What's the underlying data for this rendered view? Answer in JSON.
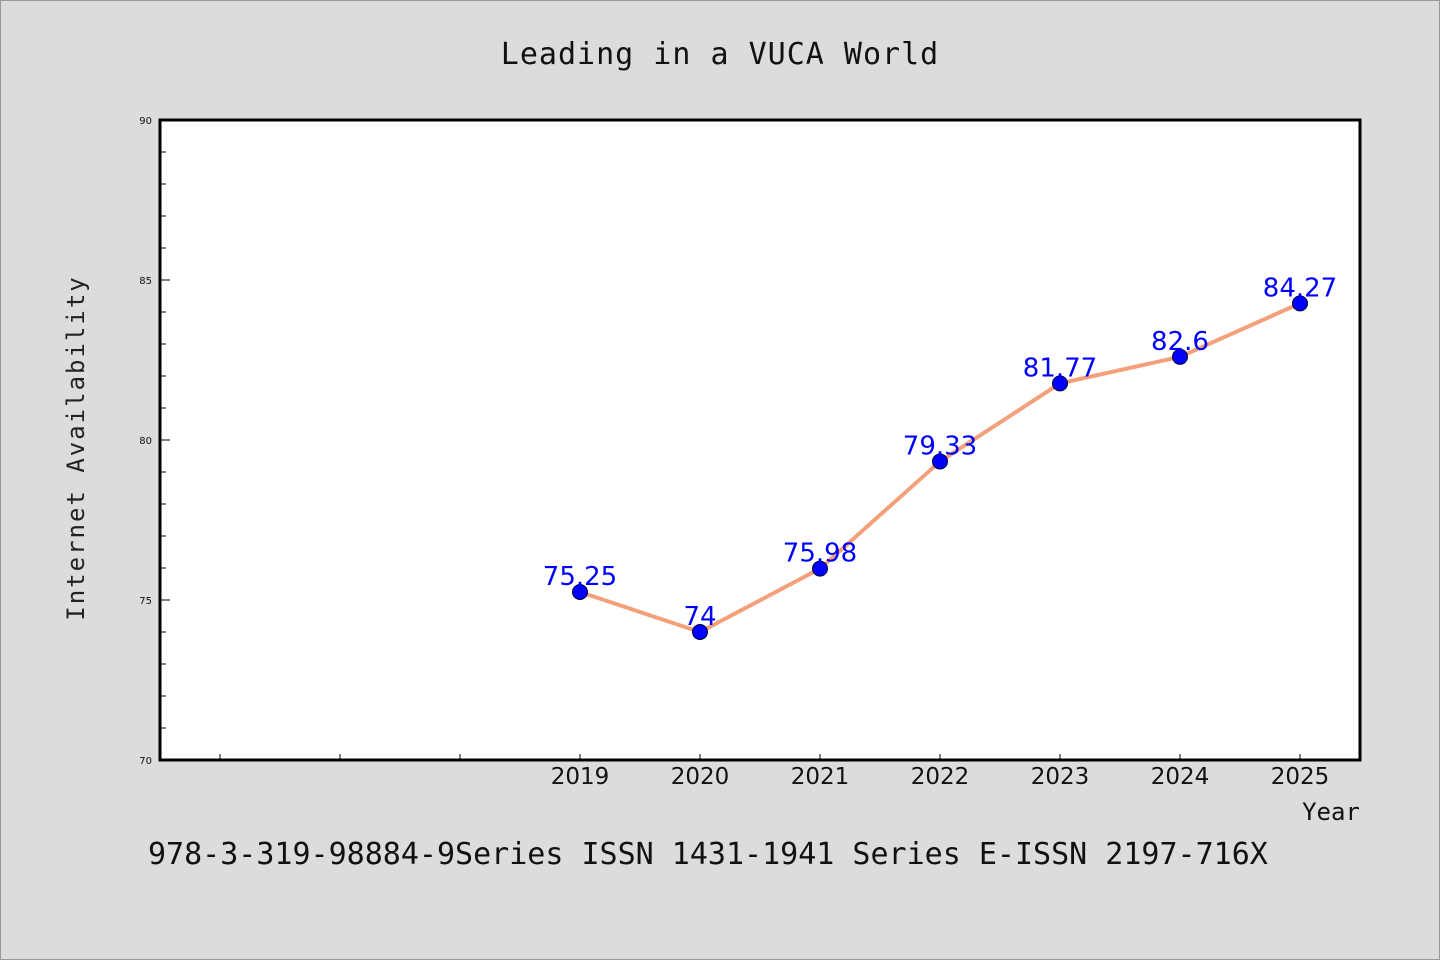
{
  "chart_data": {
    "type": "line",
    "title": "Leading in a VUCA World",
    "xlabel": "Year",
    "ylabel": "Internet Availability",
    "categories": [
      "2019",
      "2020",
      "2021",
      "2022",
      "2023",
      "2024",
      "2025"
    ],
    "series": [
      {
        "values": [
          75.25,
          74,
          75.98,
          79.33,
          81.77,
          82.6,
          84.27
        ]
      }
    ],
    "data_labels": [
      "75.25",
      "74",
      "75.98",
      "79.33",
      "81.77",
      "82.6",
      "84.27"
    ],
    "ylim": [
      70,
      90
    ],
    "yticks": [
      70,
      75,
      80,
      85,
      90
    ],
    "grid": false,
    "colors": {
      "line": "#f4a07a",
      "marker": "#0000ff",
      "label": "#0000ff",
      "background": "#dcdcdc",
      "plot_background": "#ffffff"
    }
  },
  "footer": "978-3-319-98884-9Series ISSN 1431-1941 Series E-ISSN 2197-716X"
}
